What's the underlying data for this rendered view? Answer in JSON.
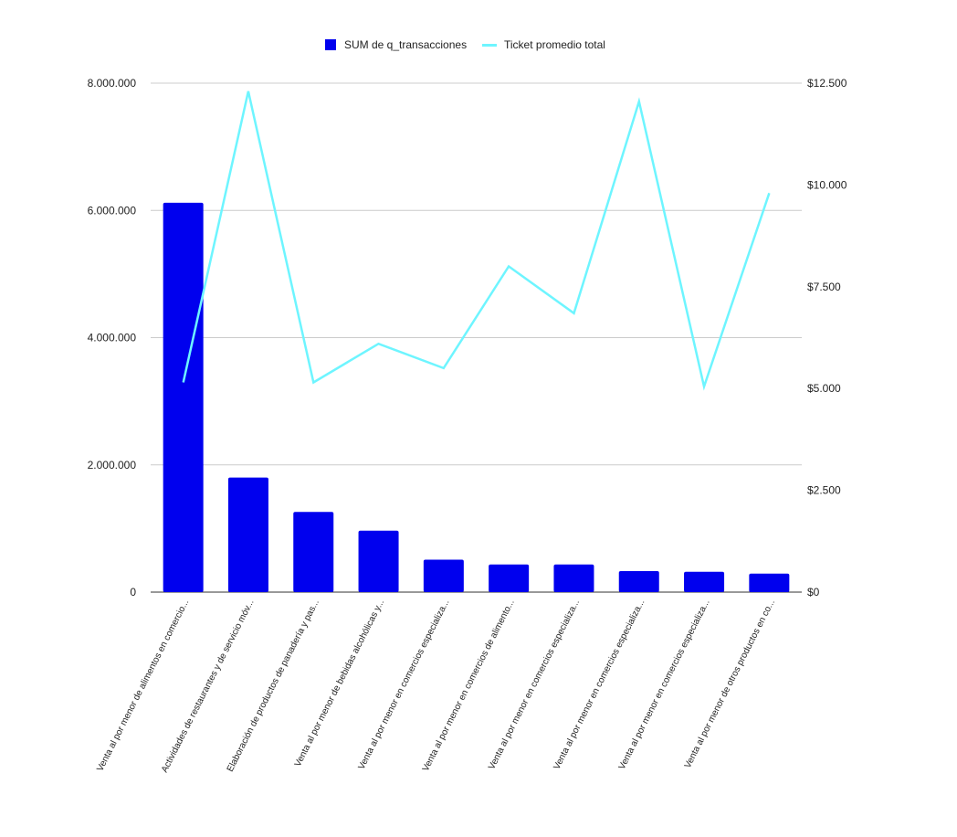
{
  "chart_data": {
    "type": "bar",
    "categories": [
      "Venta al por menor de alimentos en comercio...",
      "Actividades de restaurantes y de servicio móv...",
      "Elaboración de productos de panadería y pas...",
      "Venta al por menor de bebidas alcohólicas y...",
      "Venta al por menor en comercios especializa...",
      "Venta al por menor en comercios de alimento...",
      "Venta al por menor en comercios especializa...",
      "Venta al por menor en comercios especializa...",
      "Venta al por menor en comercios especializa...",
      "Venta al por menor de otros productos en co..."
    ],
    "series": [
      {
        "name": "SUM de q_transacciones",
        "type": "bar",
        "axis": "left",
        "color": "#0000ee",
        "values": [
          6120000,
          1800000,
          1260000,
          965000,
          510000,
          435000,
          435000,
          330000,
          320000,
          290000
        ]
      },
      {
        "name": "Ticket promedio total",
        "type": "line",
        "axis": "right",
        "color": "#6ef5ff",
        "values": [
          5150,
          12300,
          5150,
          6100,
          5500,
          8000,
          6850,
          12050,
          5050,
          9800
        ]
      }
    ],
    "y_left": {
      "min": 0,
      "max": 8000000,
      "ticks": [
        0,
        2000000,
        4000000,
        6000000,
        8000000
      ],
      "tick_labels": [
        "0",
        "2.000.000",
        "4.000.000",
        "6.000.000",
        "8.000.000"
      ]
    },
    "y_right": {
      "min": 0,
      "max": 12500,
      "ticks": [
        0,
        2500,
        5000,
        7500,
        10000,
        12500
      ],
      "tick_labels": [
        "$0",
        "$2.500",
        "$5.000",
        "$7.500",
        "$10.000",
        "$12.500"
      ]
    },
    "grid": true,
    "legend_position": "top-center",
    "title": "",
    "xlabel": "",
    "ylabel": ""
  }
}
